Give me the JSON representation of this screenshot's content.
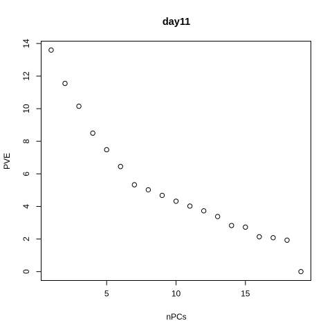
{
  "chart_data": {
    "type": "scatter",
    "title": "day11",
    "xlabel": "nPCs",
    "ylabel": "PVE",
    "x": [
      1,
      2,
      3,
      4,
      5,
      6,
      7,
      8,
      9,
      10,
      11,
      12,
      13,
      14,
      15,
      16,
      17,
      18,
      19
    ],
    "y": [
      13.6,
      11.55,
      10.15,
      8.5,
      7.48,
      6.45,
      5.33,
      5.02,
      4.68,
      4.32,
      4.02,
      3.73,
      3.38,
      2.83,
      2.73,
      2.14,
      2.08,
      1.93,
      0.0
    ],
    "xlim": [
      0.28,
      19.72
    ],
    "ylim": [
      -0.544,
      14.144
    ],
    "xticks": [
      5,
      10,
      15
    ],
    "yticks": [
      0,
      2,
      4,
      6,
      8,
      10,
      12,
      14
    ],
    "grid": false,
    "legend": "none",
    "marker": "open-circle",
    "color": "#000000"
  }
}
